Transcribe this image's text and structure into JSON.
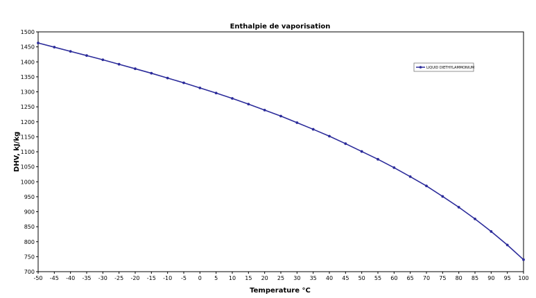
{
  "chart_data": {
    "type": "line",
    "title": "Enthalpie de vaporisation",
    "xlabel": "Temperature °C",
    "ylabel": "DHV, kJ/kg",
    "xlim": [
      -50,
      100
    ],
    "ylim": [
      700,
      1500
    ],
    "x_ticks": [
      "-50",
      "-45",
      "-40",
      "-35",
      "-30",
      "-25",
      "-20",
      "-15",
      "-10",
      "-5",
      "0",
      "5",
      "10",
      "15",
      "20",
      "25",
      "30",
      "35",
      "40",
      "45",
      "50",
      "55",
      "60",
      "65",
      "70",
      "75",
      "80",
      "85",
      "90",
      "95",
      "100"
    ],
    "y_ticks": [
      "1500",
      "1450",
      "1400",
      "1350",
      "1300",
      "1250",
      "1200",
      "1150",
      "1100",
      "1050",
      "1000",
      "950",
      "900",
      "850",
      "800",
      "750",
      "700"
    ],
    "grid": false,
    "legend_position": "top-right",
    "series": [
      {
        "name": "LIQUID DIETHYLAMMONIUM",
        "color": "#2b2b9a",
        "x": [
          -50,
          -45,
          -40,
          -35,
          -30,
          -25,
          -20,
          -15,
          -10,
          -5,
          0,
          5,
          10,
          15,
          20,
          25,
          30,
          35,
          40,
          45,
          50,
          55,
          60,
          65,
          70,
          75,
          80,
          85,
          90,
          95,
          100
        ],
        "y": [
          1463,
          1449,
          1435,
          1421,
          1407,
          1392,
          1377,
          1362,
          1346,
          1330,
          1313,
          1296,
          1278,
          1259,
          1239,
          1219,
          1197,
          1175,
          1152,
          1127,
          1101,
          1075,
          1047,
          1017,
          986,
          951,
          915,
          876,
          834,
          789,
          740
        ]
      }
    ]
  }
}
